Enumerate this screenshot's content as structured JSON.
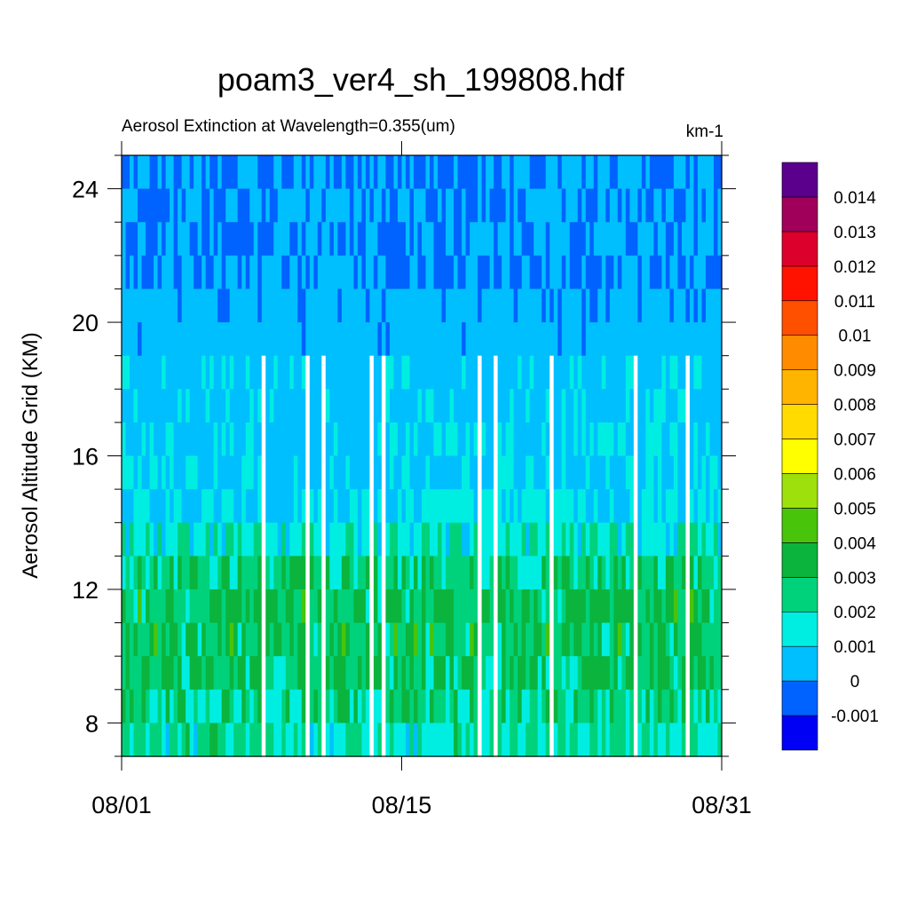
{
  "title": "poam3_ver4_sh_199808.hdf",
  "colors": {
    "ramp": [
      "#0000f5",
      "#0062ff",
      "#00bfff",
      "#00eee2",
      "#00d27c",
      "#0bb43c",
      "#48c40b",
      "#9ee00b",
      "#ffff00",
      "#ffdb00",
      "#ffb400",
      "#ff8c00",
      "#ff5000",
      "#ff1200",
      "#dc002d",
      "#a0005a",
      "#5a008c"
    ]
  },
  "chart_data": {
    "type": "heatmap",
    "title": "poam3_ver4_sh_199808.hdf",
    "subtitle": "Aerosol Extinction at Wavelength=0.355(um)",
    "units": "km-1",
    "xlabel": "",
    "ylabel": "Aerosol Altitude Grid (KM)",
    "x_tick_labels": [
      "08/01",
      "08/15",
      "08/31"
    ],
    "x_ticks_day": [
      1,
      15,
      31
    ],
    "xlim_day": [
      1,
      31
    ],
    "y_ticks": [
      8,
      12,
      16,
      20,
      24
    ],
    "ylim": [
      7,
      25
    ],
    "colorbar_labels": [
      "-0.001",
      "0",
      "0.001",
      "0.002",
      "0.003",
      "0.004",
      "0.005",
      "0.006",
      "0.007",
      "0.008",
      "0.009",
      "0.01",
      "0.011",
      "0.012",
      "0.013",
      "0.014"
    ],
    "colorbar_levels": [
      -0.001,
      0,
      0.001,
      0.002,
      0.003,
      0.004,
      0.005,
      0.006,
      0.007,
      0.008,
      0.009,
      0.01,
      0.011,
      0.012,
      0.013,
      0.014
    ],
    "grid": false,
    "legend": "right colorbar",
    "altitude_profile": [
      {
        "alt_km": 24.5,
        "value": 0.0
      },
      {
        "alt_km": 23.5,
        "value": 0.0
      },
      {
        "alt_km": 22.5,
        "value": 0.0
      },
      {
        "alt_km": 21.5,
        "value": 0.0
      },
      {
        "alt_km": 20.5,
        "value": 0.0003
      },
      {
        "alt_km": 19.5,
        "value": 0.0004
      },
      {
        "alt_km": 18.5,
        "value": 0.0006
      },
      {
        "alt_km": 17.5,
        "value": 0.0007
      },
      {
        "alt_km": 16.5,
        "value": 0.0007
      },
      {
        "alt_km": 15.5,
        "value": 0.0008
      },
      {
        "alt_km": 14.5,
        "value": 0.001
      },
      {
        "alt_km": 13.5,
        "value": 0.0017
      },
      {
        "alt_km": 12.5,
        "value": 0.0025
      },
      {
        "alt_km": 11.5,
        "value": 0.003
      },
      {
        "alt_km": 10.5,
        "value": 0.003
      },
      {
        "alt_km": 9.5,
        "value": 0.0028
      },
      {
        "alt_km": 8.5,
        "value": 0.0025
      },
      {
        "alt_km": 7.5,
        "value": 0.002
      },
      {
        "alt_km": 6.5,
        "value": 0.0018
      }
    ]
  }
}
